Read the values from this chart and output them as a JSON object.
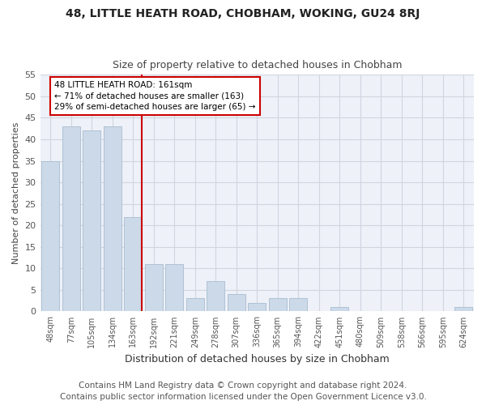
{
  "title": "48, LITTLE HEATH ROAD, CHOBHAM, WOKING, GU24 8RJ",
  "subtitle": "Size of property relative to detached houses in Chobham",
  "xlabel": "Distribution of detached houses by size in Chobham",
  "ylabel": "Number of detached properties",
  "categories": [
    "48sqm",
    "77sqm",
    "105sqm",
    "134sqm",
    "163sqm",
    "192sqm",
    "221sqm",
    "249sqm",
    "278sqm",
    "307sqm",
    "336sqm",
    "365sqm",
    "394sqm",
    "422sqm",
    "451sqm",
    "480sqm",
    "509sqm",
    "538sqm",
    "566sqm",
    "595sqm",
    "624sqm"
  ],
  "values": [
    35,
    43,
    42,
    43,
    22,
    11,
    11,
    3,
    7,
    4,
    2,
    3,
    3,
    0,
    1,
    0,
    0,
    0,
    0,
    0,
    1
  ],
  "bar_color": "#ccd9e8",
  "bar_edge_color": "#aec2d5",
  "vline_color": "#cc0000",
  "annotation_text": "48 LITTLE HEATH ROAD: 161sqm\n← 71% of detached houses are smaller (163)\n29% of semi-detached houses are larger (65) →",
  "annotation_box_color": "#cc0000",
  "ylim": [
    0,
    55
  ],
  "yticks": [
    0,
    5,
    10,
    15,
    20,
    25,
    30,
    35,
    40,
    45,
    50,
    55
  ],
  "fig_bg_color": "#ffffff",
  "plot_bg_color": "#eef1f8",
  "grid_color": "#d0d5e0",
  "footer": "Contains HM Land Registry data © Crown copyright and database right 2024.\nContains public sector information licensed under the Open Government Licence v3.0.",
  "title_fontsize": 10,
  "subtitle_fontsize": 9,
  "footer_fontsize": 7.5,
  "ylabel_fontsize": 8,
  "xlabel_fontsize": 9
}
